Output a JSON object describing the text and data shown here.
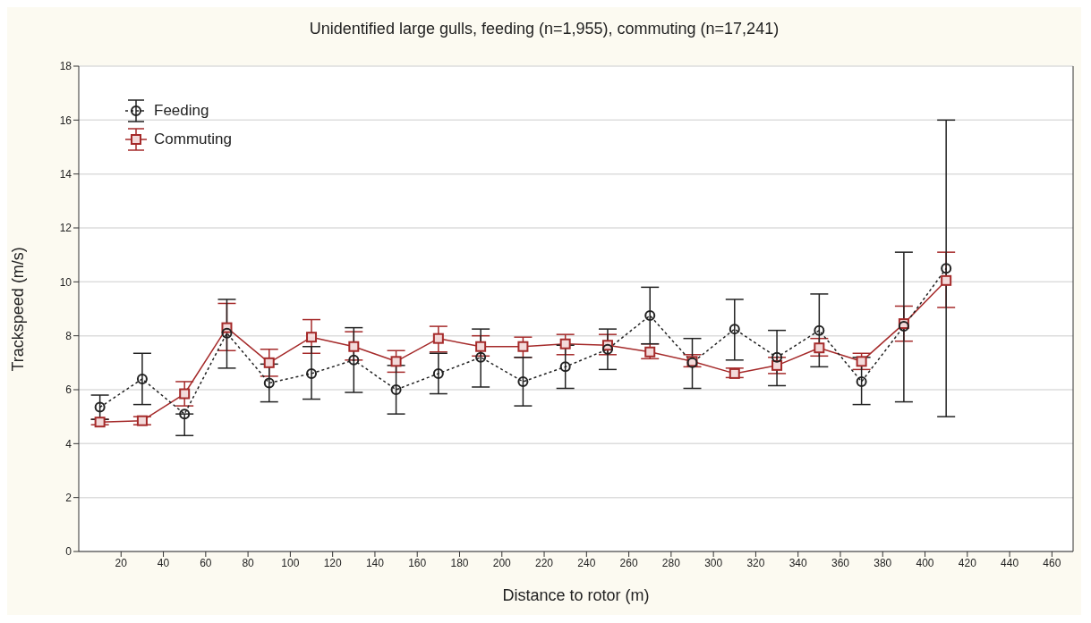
{
  "chart_data": {
    "type": "line",
    "title": "Unidentified large gulls, feeding (n=1,955), commuting (n=17,241)",
    "xlabel": "Distance to rotor (m)",
    "ylabel": "Trackspeed (m/s)",
    "x": [
      10,
      30,
      50,
      70,
      90,
      110,
      130,
      150,
      170,
      190,
      210,
      230,
      250,
      270,
      290,
      310,
      330,
      350,
      370,
      390,
      410
    ],
    "series": [
      {
        "name": "Feeding",
        "color": "#222222",
        "marker": "circle",
        "line_style": "dotted",
        "values": [
          5.35,
          6.4,
          5.1,
          8.1,
          6.25,
          6.6,
          7.1,
          6.0,
          6.6,
          7.2,
          6.3,
          6.85,
          7.5,
          8.75,
          7.0,
          8.25,
          7.2,
          8.2,
          6.3,
          8.35,
          10.5
        ],
        "errors": [
          [
            4.9,
            5.8
          ],
          [
            5.45,
            7.35
          ],
          [
            4.3,
            5.1
          ],
          [
            6.8,
            9.35
          ],
          [
            5.55,
            6.95
          ],
          [
            5.65,
            7.6
          ],
          [
            5.9,
            8.3
          ],
          [
            5.1,
            6.9
          ],
          [
            5.85,
            7.35
          ],
          [
            6.1,
            8.25
          ],
          [
            5.4,
            7.2
          ],
          [
            6.05,
            7.65
          ],
          [
            6.75,
            8.25
          ],
          [
            7.7,
            9.8
          ],
          [
            6.05,
            7.9
          ],
          [
            7.1,
            9.35
          ],
          [
            6.15,
            8.2
          ],
          [
            6.85,
            9.55
          ],
          [
            5.45,
            7.2
          ],
          [
            5.55,
            11.1
          ],
          [
            5.0,
            16.0
          ]
        ]
      },
      {
        "name": "Commuting",
        "color": "#a52a2a",
        "marker": "square",
        "line_style": "solid",
        "values": [
          4.8,
          4.85,
          5.85,
          8.3,
          7.0,
          7.95,
          7.6,
          7.05,
          7.9,
          7.6,
          7.6,
          7.7,
          7.65,
          7.4,
          7.05,
          6.6,
          6.9,
          7.55,
          7.05,
          8.45,
          10.05
        ],
        "errors": [
          [
            4.7,
            4.9
          ],
          [
            4.7,
            5.0
          ],
          [
            5.4,
            6.3
          ],
          [
            7.45,
            9.2
          ],
          [
            6.5,
            7.5
          ],
          [
            7.35,
            8.6
          ],
          [
            7.1,
            8.15
          ],
          [
            6.65,
            7.45
          ],
          [
            7.4,
            8.35
          ],
          [
            7.25,
            8.0
          ],
          [
            7.2,
            7.95
          ],
          [
            7.3,
            8.05
          ],
          [
            7.3,
            8.05
          ],
          [
            7.15,
            7.7
          ],
          [
            6.85,
            7.3
          ],
          [
            6.45,
            6.8
          ],
          [
            6.6,
            7.2
          ],
          [
            7.25,
            7.9
          ],
          [
            6.75,
            7.35
          ],
          [
            7.8,
            9.1
          ],
          [
            9.05,
            11.1
          ]
        ]
      }
    ],
    "xlim": [
      0,
      470
    ],
    "xticks": [
      20,
      40,
      60,
      80,
      100,
      120,
      140,
      160,
      180,
      200,
      220,
      240,
      260,
      280,
      300,
      320,
      340,
      360,
      380,
      400,
      420,
      440,
      460
    ],
    "ylim": [
      0,
      18
    ],
    "yticks": [
      0,
      2,
      4,
      6,
      8,
      10,
      12,
      14,
      16,
      18
    ],
    "grid": "y",
    "legend": "top left"
  }
}
